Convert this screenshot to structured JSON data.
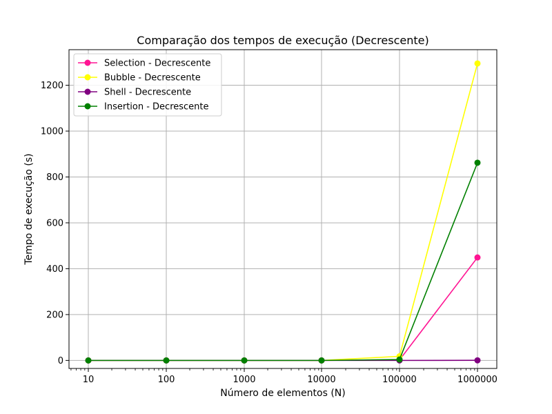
{
  "chart_data": {
    "type": "line",
    "title": "Comparação dos tempos de execução (Decrescente)",
    "xlabel": "Número de elementos (N)",
    "ylabel": "Tempo de execução (s)",
    "x_scale": "log",
    "x": [
      10,
      100,
      1000,
      10000,
      100000,
      1000000
    ],
    "x_tick_labels": [
      "10",
      "100",
      "1000",
      "10000",
      "100000",
      "1000000"
    ],
    "y_ticks": [
      0,
      200,
      400,
      600,
      800,
      1000,
      1200
    ],
    "y_tick_labels": [
      "0",
      "200",
      "400",
      "600",
      "800",
      "1000",
      "1200"
    ],
    "ylim": [
      -35,
      1355
    ],
    "grid": true,
    "legend_position": "top-left",
    "series": [
      {
        "name": "Selection - Decrescente",
        "color": "#ff1493",
        "values": [
          0,
          0,
          0,
          0,
          2,
          449
        ]
      },
      {
        "name": "Bubble - Decrescente",
        "color": "#ffff00",
        "values": [
          0,
          0,
          0,
          0,
          18,
          1295
        ]
      },
      {
        "name": "Shell - Decrescente",
        "color": "#800080",
        "values": [
          0,
          0,
          0,
          0,
          0,
          0.5
        ]
      },
      {
        "name": "Insertion - Decrescente",
        "color": "#008000",
        "values": [
          0,
          0,
          0,
          0,
          4,
          862
        ]
      }
    ]
  }
}
